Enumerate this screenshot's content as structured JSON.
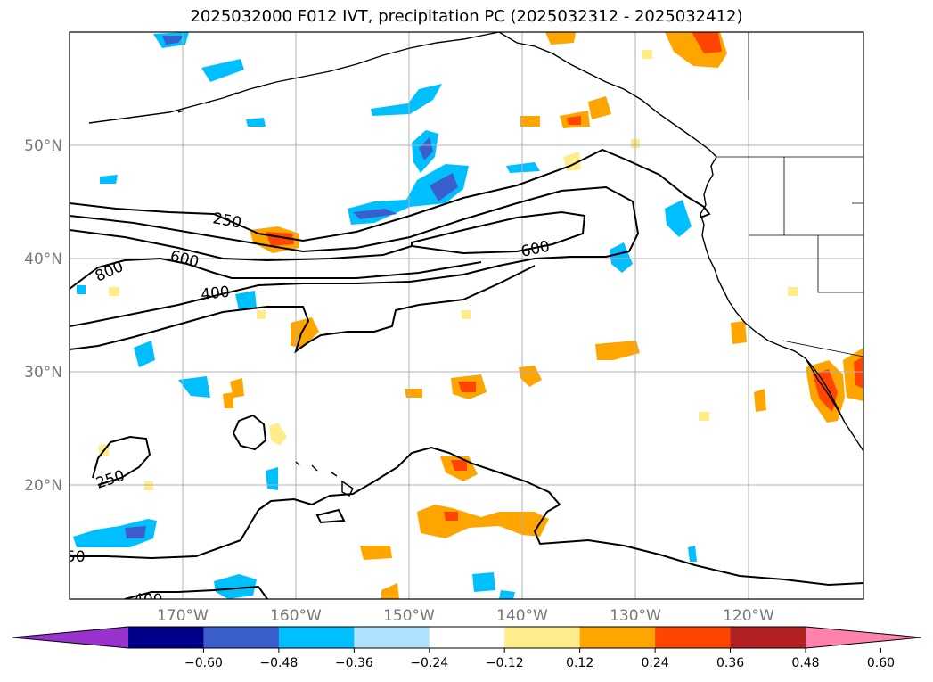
{
  "title": "2025032000 F012 IVT, precipitation PC (2025032312 - 2025032412)",
  "lat_labels": [
    "50°N",
    "40°N",
    "30°N",
    "20°N"
  ],
  "lon_labels": [
    "170°W",
    "160°W",
    "150°W",
    "140°W",
    "130°W",
    "120°W"
  ],
  "contour_labels": [
    "250",
    "600",
    "800",
    "400",
    "600",
    "250",
    "50",
    "400"
  ],
  "colorbar": {
    "ticks": [
      "−0.60",
      "−0.48",
      "−0.36",
      "−0.24",
      "−0.12",
      "0.12",
      "0.24",
      "0.36",
      "0.48",
      "0.60"
    ],
    "colors": [
      "#9932cc",
      "#00008b",
      "#3a5fcd",
      "#00bfff",
      "#b0e2ff",
      "#ffffff",
      "#ffec8b",
      "#ffa500",
      "#ff4500",
      "#b22222",
      "#ff82ab"
    ]
  }
}
